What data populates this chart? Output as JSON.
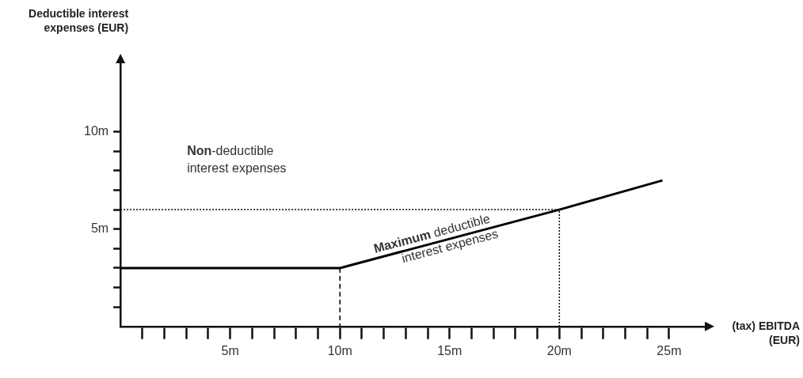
{
  "chart_data": {
    "type": "line",
    "xlabel": "(tax) EBITDA (EUR)",
    "ylabel": "Deductible interest expenses (EUR)",
    "xlim": [
      0,
      26.7
    ],
    "ylim": [
      0,
      13.6
    ],
    "xticks": [
      {
        "value": 1,
        "label": null
      },
      {
        "value": 2,
        "label": null
      },
      {
        "value": 3,
        "label": null
      },
      {
        "value": 4,
        "label": null
      },
      {
        "value": 5,
        "label": "5m"
      },
      {
        "value": 6,
        "label": null
      },
      {
        "value": 7,
        "label": null
      },
      {
        "value": 8,
        "label": null
      },
      {
        "value": 9,
        "label": null
      },
      {
        "value": 10,
        "label": "10m"
      },
      {
        "value": 11,
        "label": null
      },
      {
        "value": 12,
        "label": null
      },
      {
        "value": 13,
        "label": null
      },
      {
        "value": 14,
        "label": null
      },
      {
        "value": 15,
        "label": "15m"
      },
      {
        "value": 16,
        "label": null
      },
      {
        "value": 17,
        "label": null
      },
      {
        "value": 18,
        "label": null
      },
      {
        "value": 19,
        "label": null
      },
      {
        "value": 20,
        "label": "20m"
      },
      {
        "value": 21,
        "label": null
      },
      {
        "value": 22,
        "label": null
      },
      {
        "value": 23,
        "label": null
      },
      {
        "value": 24,
        "label": null
      },
      {
        "value": 25,
        "label": "25m"
      }
    ],
    "yticks": [
      {
        "value": 1,
        "label": null
      },
      {
        "value": 2,
        "label": null
      },
      {
        "value": 3,
        "label": null
      },
      {
        "value": 4,
        "label": null
      },
      {
        "value": 5,
        "label": "5m"
      },
      {
        "value": 6,
        "label": null
      },
      {
        "value": 7,
        "label": null
      },
      {
        "value": 8,
        "label": null
      },
      {
        "value": 9,
        "label": null
      },
      {
        "value": 10,
        "label": "10m"
      }
    ],
    "series": [
      {
        "color": "#000000",
        "x": [
          0,
          10,
          20,
          24.7
        ],
        "values": [
          3,
          3,
          6,
          7.5
        ],
        "line_style": "solid"
      },
      {
        "color": "#000000",
        "x": [
          0,
          20,
          20
        ],
        "values": [
          6,
          6,
          0
        ],
        "line_style": "dotted"
      },
      {
        "color": "#000000",
        "x": [
          10,
          10
        ],
        "values": [
          3,
          0
        ],
        "line_style": "dashed"
      }
    ],
    "annotations": [
      "Non-deductible interest expenses",
      {
        "text": "Maximum deductible interest expenses",
        "x": 14.3,
        "y": 4.3
      }
    ],
    "grid": false,
    "legend": false,
    "marker": "none"
  }
}
